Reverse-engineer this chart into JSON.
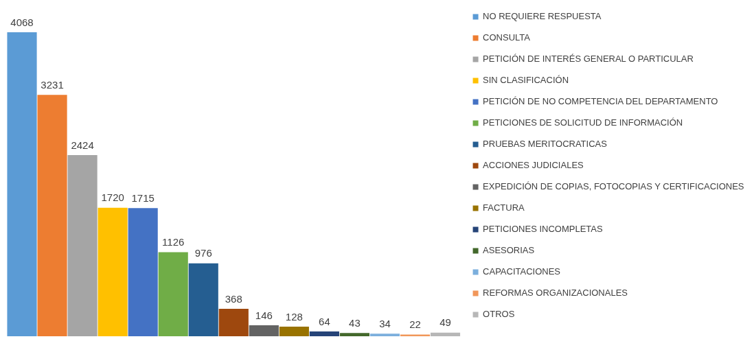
{
  "chart_data": {
    "type": "bar",
    "stacked": true,
    "categories": [
      null,
      null,
      null,
      null,
      null,
      null,
      null,
      null,
      null,
      null,
      null,
      null,
      null,
      null,
      null
    ],
    "series": [
      {
        "name": "NO REQUIERE RESPUESTA",
        "color": "#5b9bd5",
        "values": [
          4068,
          null,
          null,
          null,
          null,
          null,
          null,
          null,
          null,
          null,
          null,
          null,
          null,
          null,
          null
        ]
      },
      {
        "name": "CONSULTA",
        "color": "#ed7d31",
        "values": [
          null,
          3231,
          null,
          null,
          null,
          null,
          null,
          null,
          null,
          null,
          null,
          null,
          null,
          null,
          null
        ]
      },
      {
        "name": "PETICIÓN DE INTERÉS GENERAL O PARTICULAR",
        "color": "#a5a5a5",
        "values": [
          null,
          null,
          2424,
          null,
          null,
          null,
          null,
          null,
          null,
          null,
          null,
          null,
          null,
          null,
          null
        ]
      },
      {
        "name": "SIN CLASIFICACIÓN",
        "color": "#ffc000",
        "values": [
          null,
          null,
          null,
          1720,
          null,
          null,
          null,
          null,
          null,
          null,
          null,
          null,
          null,
          null,
          null
        ]
      },
      {
        "name": "PETICIÓN DE NO COMPETENCIA DEL DEPARTAMENTO",
        "color": "#4472c4",
        "values": [
          null,
          null,
          null,
          null,
          1715,
          null,
          null,
          null,
          null,
          null,
          null,
          null,
          null,
          null,
          null
        ]
      },
      {
        "name": "PETICIONES DE SOLICITUD DE INFORMACIÓN",
        "color": "#70ad47",
        "values": [
          null,
          null,
          null,
          null,
          null,
          1126,
          null,
          null,
          null,
          null,
          null,
          null,
          null,
          null,
          null
        ]
      },
      {
        "name": "PRUEBAS MERITOCRATICAS",
        "color": "#255e91",
        "values": [
          null,
          null,
          null,
          null,
          null,
          null,
          976,
          null,
          null,
          null,
          null,
          null,
          null,
          null,
          null
        ]
      },
      {
        "name": "ACCIONES JUDICIALES",
        "color": "#9e480e",
        "values": [
          null,
          null,
          null,
          null,
          null,
          null,
          null,
          368,
          null,
          null,
          null,
          null,
          null,
          null,
          null
        ]
      },
      {
        "name": "EXPEDICIÓN DE COPIAS, FOTOCOPIAS Y CERTIFICACIONES",
        "color": "#636363",
        "values": [
          null,
          null,
          null,
          null,
          null,
          null,
          null,
          null,
          146,
          null,
          null,
          null,
          null,
          null,
          null
        ]
      },
      {
        "name": "FACTURA",
        "color": "#997300",
        "values": [
          null,
          null,
          null,
          null,
          null,
          null,
          null,
          null,
          null,
          128,
          null,
          null,
          null,
          null,
          null
        ]
      },
      {
        "name": "PETICIONES INCOMPLETAS",
        "color": "#264478",
        "values": [
          null,
          null,
          null,
          null,
          null,
          null,
          null,
          null,
          null,
          null,
          64,
          null,
          null,
          null,
          null
        ]
      },
      {
        "name": "ASESORIAS",
        "color": "#43682b",
        "values": [
          null,
          null,
          null,
          null,
          null,
          null,
          null,
          null,
          null,
          null,
          null,
          43,
          null,
          null,
          null
        ]
      },
      {
        "name": "CAPACITACIONES",
        "color": "#7cafdd",
        "values": [
          null,
          null,
          null,
          null,
          null,
          null,
          null,
          null,
          null,
          null,
          null,
          null,
          34,
          null,
          null
        ]
      },
      {
        "name": "REFORMAS ORGANIZACIONALES",
        "color": "#f1975a",
        "values": [
          null,
          null,
          null,
          null,
          null,
          null,
          null,
          null,
          null,
          null,
          null,
          null,
          null,
          22,
          null
        ]
      },
      {
        "name": "OTROS",
        "color": "#b7b7b7",
        "values": [
          null,
          null,
          null,
          null,
          null,
          null,
          null,
          null,
          null,
          null,
          null,
          null,
          null,
          null,
          49
        ]
      }
    ],
    "data_labels": true,
    "legend": "right"
  }
}
